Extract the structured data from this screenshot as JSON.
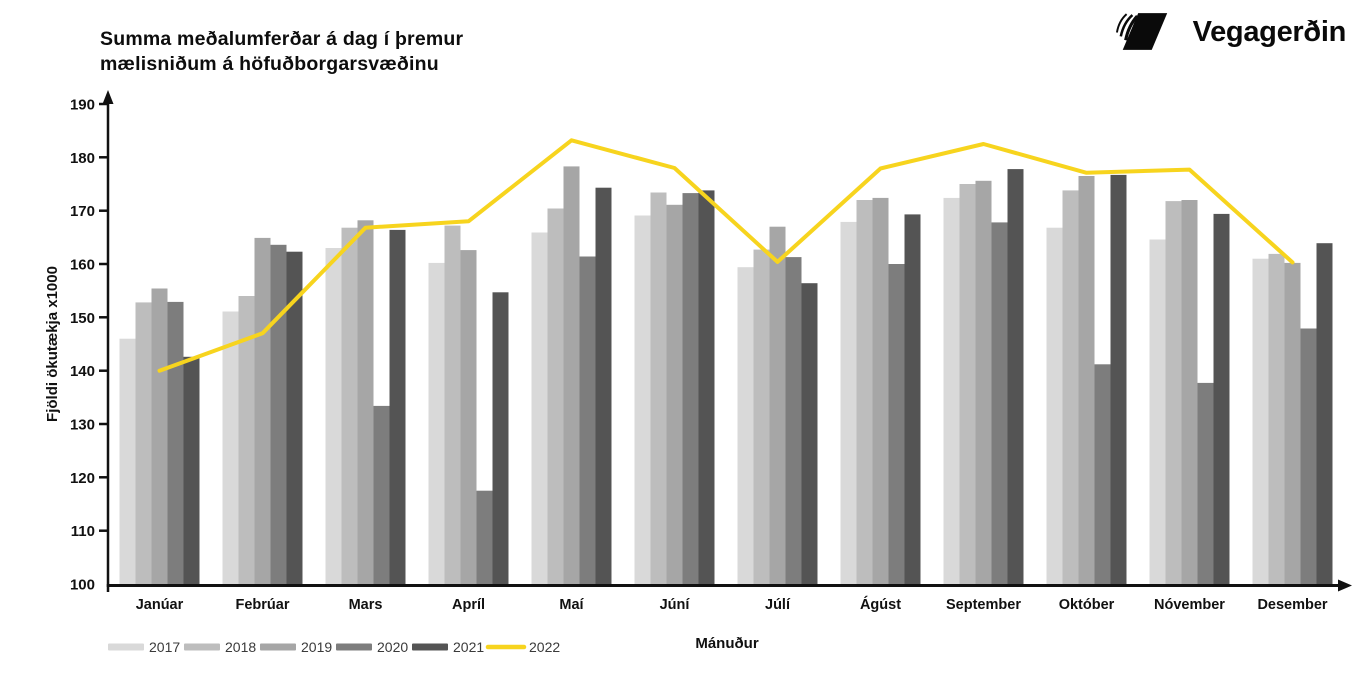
{
  "header": {
    "title_line1": "Summa meðalumferðar á dag í þremur",
    "title_line2": "mælisniðum á höfuðborgarsvæðinu",
    "logo_text": "Vegagerðin"
  },
  "chart_data": {
    "type": "bar",
    "title": "Summa meðalumferðar á dag í þremur mælisniðum á höfuðborgarsvæðinu",
    "xlabel": "Mánuður",
    "ylabel": "Fjöldi ökutækja x1000",
    "ylim": [
      100,
      190
    ],
    "yticks": [
      100,
      110,
      120,
      130,
      140,
      150,
      160,
      170,
      180,
      190
    ],
    "grid": false,
    "legend_position": "bottom-left",
    "axis_color": "#111111",
    "legend_text_color": "#3a3a3a",
    "categories": [
      "Janúar",
      "Febrúar",
      "Mars",
      "Apríl",
      "Maí",
      "Júní",
      "Júlí",
      "Ágúst",
      "September",
      "Október",
      "Nóvember",
      "Desember"
    ],
    "series": [
      {
        "name": "2017",
        "type": "bar",
        "color": "#d9d9d9",
        "values": [
          146.0,
          151.1,
          163.0,
          160.2,
          165.9,
          169.1,
          159.4,
          167.9,
          172.4,
          166.8,
          164.6,
          161.0
        ]
      },
      {
        "name": "2018",
        "type": "bar",
        "color": "#bdbdbd",
        "values": [
          152.8,
          154.0,
          166.8,
          167.2,
          170.4,
          173.4,
          162.7,
          172.0,
          175.0,
          173.8,
          171.8,
          161.9
        ]
      },
      {
        "name": "2019",
        "type": "bar",
        "color": "#a6a6a6",
        "values": [
          155.4,
          164.9,
          168.2,
          162.6,
          178.3,
          171.1,
          167.0,
          172.4,
          175.6,
          176.5,
          172.0,
          160.2
        ]
      },
      {
        "name": "2020",
        "type": "bar",
        "color": "#7d7d7d",
        "values": [
          152.9,
          163.6,
          133.4,
          117.5,
          161.4,
          173.3,
          161.3,
          160.0,
          167.8,
          141.2,
          137.7,
          147.9
        ]
      },
      {
        "name": "2021",
        "type": "bar",
        "color": "#545454",
        "values": [
          142.6,
          162.3,
          166.4,
          154.7,
          174.3,
          173.8,
          156.4,
          169.3,
          177.8,
          176.7,
          169.4,
          163.9
        ]
      },
      {
        "name": "2022",
        "type": "line",
        "color": "#f7d41e",
        "values": [
          140.0,
          147.0,
          166.8,
          168.0,
          183.2,
          178.0,
          160.4,
          177.9,
          182.5,
          177.1,
          177.7,
          160.3
        ]
      }
    ]
  }
}
